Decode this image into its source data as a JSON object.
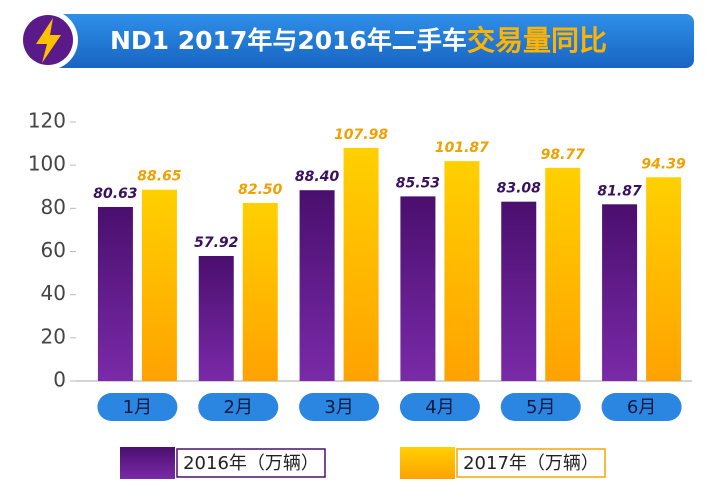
{
  "chart_data": {
    "type": "bar",
    "title": "ND1 2017年与2016年二手车",
    "title_highlight": "交易量同比",
    "categories": [
      "1月",
      "2月",
      "3月",
      "4月",
      "5月",
      "6月"
    ],
    "series": [
      {
        "name": "2016年（万辆）",
        "color": "#4a0f6e",
        "values": [
          80.63,
          57.92,
          88.4,
          85.53,
          83.08,
          81.87
        ],
        "value_labels": [
          "80.63",
          "57.92",
          "88.40",
          "85.53",
          "83.08",
          "81.87"
        ]
      },
      {
        "name": "2017年（万辆）",
        "color": "#ffa200",
        "values": [
          88.65,
          82.5,
          107.98,
          101.87,
          98.77,
          94.39
        ],
        "value_labels": [
          "88.65",
          "82.50",
          "107.98",
          "101.87",
          "98.77",
          "94.39"
        ]
      }
    ],
    "ylim": [
      0,
      120
    ],
    "yticks": [
      0,
      20,
      40,
      60,
      80,
      100,
      120
    ],
    "grid": false
  }
}
